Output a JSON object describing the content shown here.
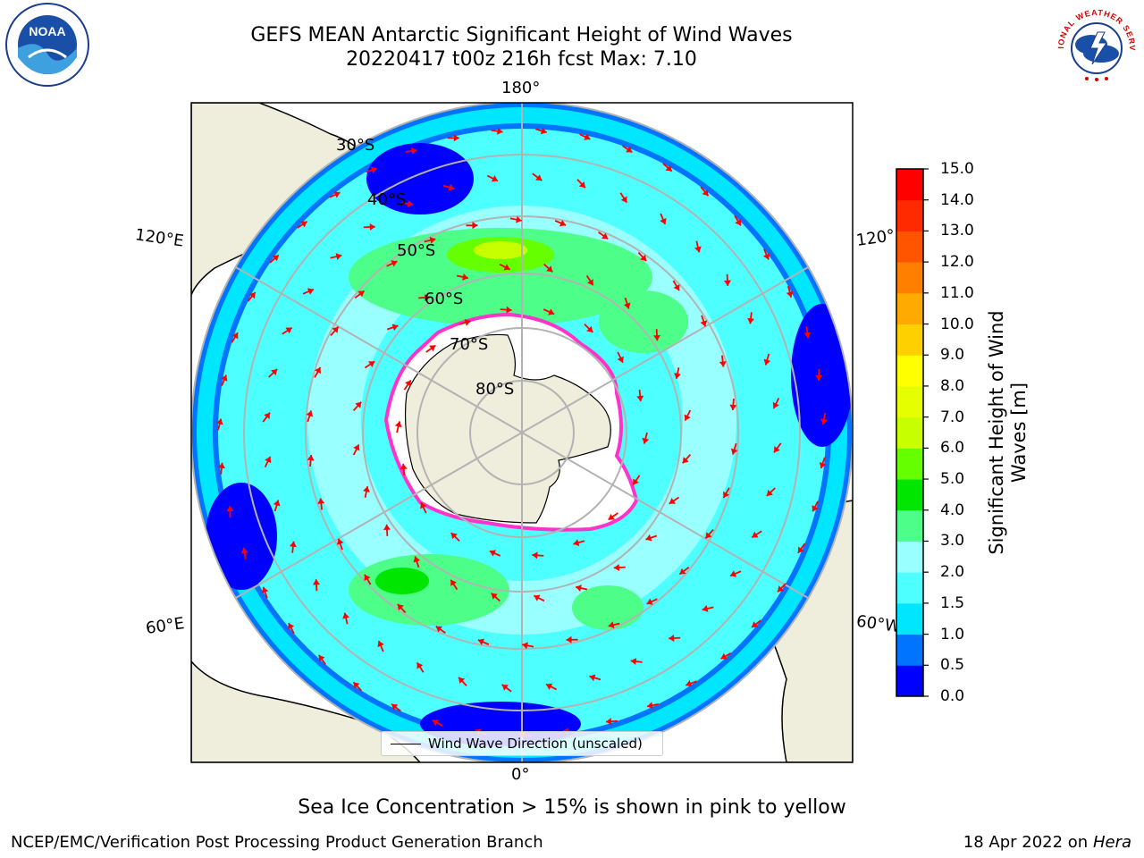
{
  "header": {
    "title_line1": "GEFS MEAN Antarctic Significant Height of Wind Waves",
    "title_line2": "20220417 t00z 216h fcst   Max: 7.10"
  },
  "map": {
    "projection": "south-polar-stereographic",
    "lon_labels": {
      "top": "180°",
      "bottom": "0°",
      "upper_left": "120°E",
      "upper_right": "120°",
      "lower_left": "60°E",
      "lower_right": "60°W"
    },
    "lat_labels": [
      "30°S",
      "40°S",
      "50°S",
      "60°S",
      "70°S",
      "80°S"
    ],
    "ocean_color": "#ffffff",
    "land_color": "#efeddc",
    "legend_label": "Wind Wave Direction (unscaled)",
    "arrow_color": "#ff0000"
  },
  "colorbar": {
    "label": "Significant Height of Wind Waves [m]",
    "ticks": [
      "0.0",
      "0.5",
      "1.0",
      "1.5",
      "2.0",
      "3.0",
      "4.0",
      "5.0",
      "6.0",
      "7.0",
      "8.0",
      "9.0",
      "10.0",
      "11.0",
      "12.0",
      "13.0",
      "14.0",
      "15.0"
    ],
    "colors": [
      "#0000ff",
      "#0073ff",
      "#00e6ff",
      "#4dffff",
      "#99ffff",
      "#4dff88",
      "#00e600",
      "#66ff00",
      "#c8ff00",
      "#e6ff00",
      "#ffff00",
      "#ffd000",
      "#ffaa00",
      "#ff8000",
      "#ff5500",
      "#ff2a00",
      "#ff0000"
    ]
  },
  "notes": {
    "ice": "Sea Ice Concentration > 15% is shown in pink to yellow"
  },
  "footer": {
    "left": "NCEP/EMC/Verification Post Processing Product Generation Branch",
    "right_prefix": "18 Apr 2022 on",
    "right_host": "Hera"
  },
  "logos": {
    "left_text": "NOAA",
    "right_text": "NATIONAL WEATHER SERVICE"
  }
}
